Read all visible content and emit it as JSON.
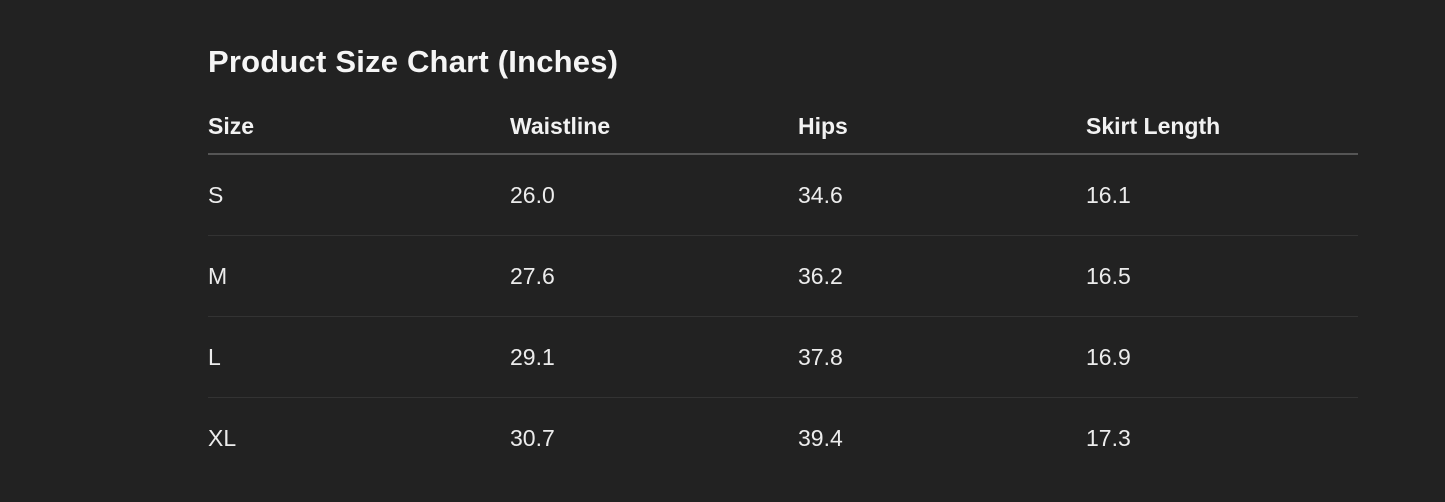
{
  "title": "Product Size Chart (Inches)",
  "table": {
    "headers": [
      "Size",
      "Waistline",
      "Hips",
      "Skirt Length"
    ],
    "rows": [
      [
        "S",
        "26.0",
        "34.6",
        "16.1"
      ],
      [
        "M",
        "27.6",
        "36.2",
        "16.5"
      ],
      [
        "L",
        "29.1",
        "37.8",
        "16.9"
      ],
      [
        "XL",
        "30.7",
        "39.4",
        "17.3"
      ]
    ]
  }
}
